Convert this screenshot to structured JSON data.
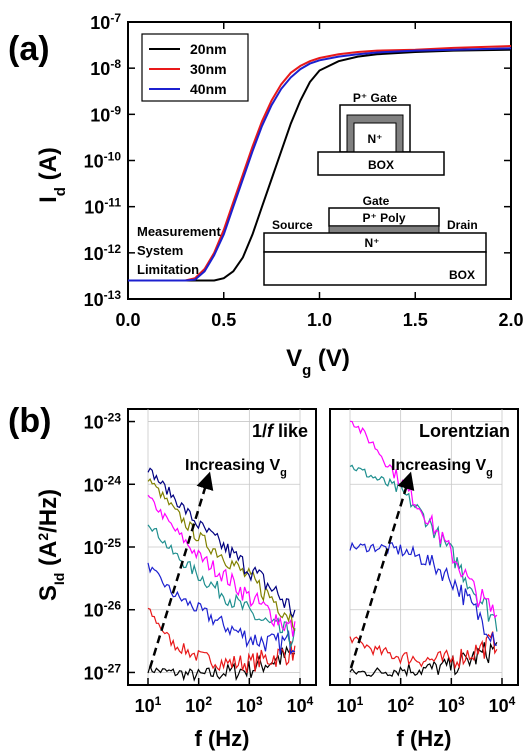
{
  "panel_a": {
    "label": "(a)",
    "ylabel": "I_d (A)",
    "xlabel": "V_g (V)",
    "annotation": [
      "Measurement",
      "System",
      "Limitation"
    ],
    "inset_top": {
      "gate": "P⁺ Gate",
      "n": "N⁺",
      "box": "BOX"
    },
    "inset_bottom": {
      "gate": "Gate",
      "poly": "P⁺ Poly",
      "source": "Source",
      "drain": "Drain",
      "n": "N⁺",
      "box": "BOX"
    }
  },
  "panel_b": {
    "label": "(b)",
    "ylabel": "S_Id (A²/Hz)",
    "left_title": "1/f like",
    "right_title": "Lorentzian",
    "arrow_label": "Increasing V_g",
    "xlabel": "f (Hz)"
  },
  "chart_data": [
    {
      "type": "line",
      "panel": "(a)",
      "xlabel": "Vg (V)",
      "ylabel": "Id (A)",
      "xlim": [
        0.0,
        2.0
      ],
      "ylim_log10": [
        -13,
        -7
      ],
      "yscale": "log",
      "xticks": [
        "0.0",
        "0.5",
        "1.0",
        "1.5",
        "2.0"
      ],
      "yticks": [
        "10-13",
        "10-12",
        "10-11",
        "10-10",
        "10-9",
        "10-8",
        "10-7"
      ],
      "legend": "top-left",
      "series": [
        {
          "name": "20nm",
          "color": "#000000",
          "x": [
            0.0,
            0.1,
            0.2,
            0.3,
            0.4,
            0.45,
            0.5,
            0.55,
            0.6,
            0.65,
            0.7,
            0.75,
            0.8,
            0.85,
            0.9,
            0.95,
            1.0,
            1.1,
            1.2,
            1.3,
            1.5,
            1.7,
            2.0
          ],
          "log10y": [
            -12.6,
            -12.6,
            -12.6,
            -12.6,
            -12.6,
            -12.6,
            -12.55,
            -12.4,
            -12.1,
            -11.6,
            -11.0,
            -10.4,
            -9.8,
            -9.2,
            -8.7,
            -8.3,
            -8.05,
            -7.85,
            -7.75,
            -7.7,
            -7.65,
            -7.62,
            -7.6
          ]
        },
        {
          "name": "30nm",
          "color": "#e8191a",
          "x": [
            0.0,
            0.1,
            0.2,
            0.3,
            0.35,
            0.4,
            0.45,
            0.5,
            0.55,
            0.6,
            0.65,
            0.7,
            0.75,
            0.8,
            0.85,
            0.9,
            0.95,
            1.0,
            1.1,
            1.2,
            1.3,
            1.5,
            1.7,
            2.0
          ],
          "log10y": [
            -12.6,
            -12.6,
            -12.6,
            -12.6,
            -12.55,
            -12.35,
            -12.0,
            -11.5,
            -10.9,
            -10.3,
            -9.7,
            -9.15,
            -8.7,
            -8.35,
            -8.1,
            -7.95,
            -7.85,
            -7.78,
            -7.7,
            -7.65,
            -7.62,
            -7.6,
            -7.56,
            -7.52
          ]
        },
        {
          "name": "40nm",
          "color": "#1c20cf",
          "x": [
            0.0,
            0.1,
            0.2,
            0.3,
            0.35,
            0.4,
            0.45,
            0.5,
            0.55,
            0.6,
            0.65,
            0.7,
            0.75,
            0.8,
            0.85,
            0.9,
            0.95,
            1.0,
            1.1,
            1.2,
            1.3,
            1.5,
            1.7,
            2.0
          ],
          "log10y": [
            -12.6,
            -12.6,
            -12.6,
            -12.6,
            -12.58,
            -12.4,
            -12.05,
            -11.6,
            -11.0,
            -10.4,
            -9.8,
            -9.25,
            -8.8,
            -8.45,
            -8.2,
            -8.02,
            -7.9,
            -7.83,
            -7.75,
            -7.7,
            -7.66,
            -7.62,
            -7.6,
            -7.57
          ]
        }
      ]
    },
    {
      "type": "line",
      "panel": "(b) left",
      "title": "1/f like",
      "xlabel": "f (Hz)",
      "xscale": "log",
      "yscale": "log",
      "xlim_log10": [
        1,
        4
      ],
      "ylim_log10": [
        -27.2,
        -22.8
      ],
      "xticks": [
        "10^1",
        "10^2",
        "10^3",
        "10^4"
      ],
      "yticks": [
        "10^-27",
        "10^-26",
        "10^-25",
        "10^-24",
        "10^-23"
      ],
      "series": [
        {
          "color": "#000000",
          "logf": [
            1.0,
            1.5,
            2.0,
            2.5,
            3.0,
            3.5,
            3.9
          ],
          "logS": [
            -26.95,
            -27.0,
            -27.05,
            -27.0,
            -26.95,
            -26.8,
            -26.7
          ]
        },
        {
          "color": "#e8191a",
          "logf": [
            1.0,
            1.5,
            2.0,
            2.5,
            3.0,
            3.5,
            3.9
          ],
          "logS": [
            -26.0,
            -26.55,
            -26.75,
            -26.85,
            -26.85,
            -26.75,
            -26.65
          ]
        },
        {
          "color": "#1c20cf",
          "logf": [
            1.0,
            1.5,
            2.0,
            2.5,
            3.0,
            3.5,
            3.9
          ],
          "logS": [
            -25.3,
            -25.75,
            -26.0,
            -26.25,
            -26.45,
            -26.55,
            -26.5
          ]
        },
        {
          "color": "#1f8f8f",
          "logf": [
            1.0,
            1.5,
            2.0,
            2.5,
            3.0,
            3.5,
            3.9
          ],
          "logS": [
            -24.6,
            -25.1,
            -25.45,
            -25.75,
            -26.05,
            -26.3,
            -26.45
          ]
        },
        {
          "color": "#ff00ff",
          "logf": [
            1.0,
            1.5,
            2.0,
            2.5,
            3.0,
            3.5,
            3.9
          ],
          "logS": [
            -24.2,
            -24.7,
            -25.15,
            -25.45,
            -25.8,
            -26.1,
            -26.35
          ]
        },
        {
          "color": "#808000",
          "logf": [
            1.0,
            1.5,
            2.0,
            2.5,
            3.0,
            3.5,
            3.9
          ],
          "logS": [
            -23.9,
            -24.4,
            -24.85,
            -25.15,
            -25.5,
            -25.85,
            -26.15
          ]
        },
        {
          "color": "#000080",
          "logf": [
            1.0,
            1.5,
            2.0,
            2.5,
            3.0,
            3.5,
            3.9
          ],
          "logS": [
            -23.75,
            -24.2,
            -24.65,
            -25.0,
            -25.35,
            -25.7,
            -26.05
          ]
        }
      ]
    },
    {
      "type": "line",
      "panel": "(b) right",
      "title": "Lorentzian",
      "xlabel": "f (Hz)",
      "xscale": "log",
      "yscale": "log",
      "xlim_log10": [
        1,
        4
      ],
      "ylim_log10": [
        -27.2,
        -22.8
      ],
      "xticks": [
        "10^1",
        "10^2",
        "10^3",
        "10^4"
      ],
      "series": [
        {
          "color": "#000000",
          "logf": [
            1.0,
            1.5,
            2.0,
            2.5,
            3.0,
            3.5,
            3.9
          ],
          "logS": [
            -27.0,
            -27.0,
            -26.95,
            -26.95,
            -26.9,
            -26.75,
            -26.6
          ]
        },
        {
          "color": "#e8191a",
          "logf": [
            1.0,
            1.5,
            2.0,
            2.5,
            3.0,
            3.5,
            3.9
          ],
          "logS": [
            -26.45,
            -26.65,
            -26.75,
            -26.8,
            -26.8,
            -26.65,
            -26.5
          ]
        },
        {
          "color": "#1c20cf",
          "logf": [
            1.0,
            1.5,
            2.0,
            2.5,
            3.0,
            3.5,
            3.9
          ],
          "logS": [
            -25.0,
            -25.0,
            -25.05,
            -25.2,
            -25.5,
            -26.05,
            -26.45
          ]
        },
        {
          "color": "#1f8f8f",
          "logf": [
            1.0,
            1.5,
            2.0,
            2.5,
            3.0,
            3.5,
            3.9
          ],
          "logS": [
            -23.7,
            -23.9,
            -24.1,
            -24.55,
            -25.1,
            -25.75,
            -26.2
          ]
        },
        {
          "color": "#ff00ff",
          "logf": [
            1.0,
            1.5,
            2.0,
            2.5,
            3.0,
            3.5,
            3.9
          ],
          "logS": [
            -22.95,
            -23.4,
            -23.95,
            -24.5,
            -25.1,
            -25.75,
            -26.1
          ]
        }
      ]
    }
  ]
}
